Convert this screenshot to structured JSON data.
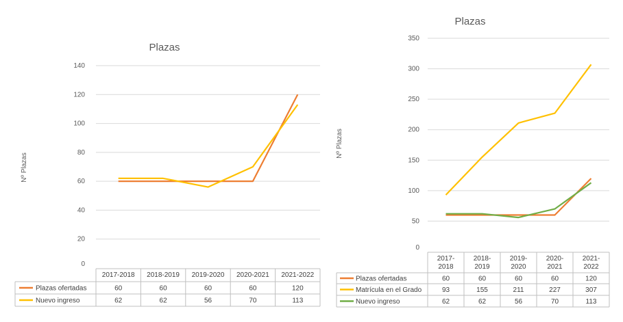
{
  "chart_data": [
    {
      "type": "line",
      "title": "Plazas",
      "ylabel": "Nº Plazas",
      "xlabel": "",
      "categories": [
        "2017-2018",
        "2018-2019",
        "2019-2020",
        "2020-2021",
        "2021-2022"
      ],
      "ylim": [
        0,
        140
      ],
      "yticks": [
        0,
        20,
        40,
        60,
        80,
        100,
        120,
        140
      ],
      "grid": true,
      "legend": "data-table",
      "series": [
        {
          "name": "Plazas ofertadas",
          "color": "#ed7d31",
          "values": [
            60,
            60,
            60,
            60,
            120
          ]
        },
        {
          "name": "Nuevo ingreso",
          "color": "#ffc000",
          "values": [
            62,
            62,
            56,
            70,
            113
          ]
        }
      ]
    },
    {
      "type": "line",
      "title": "Plazas",
      "ylabel": "Nº Plazas",
      "xlabel": "",
      "categories": [
        "2017-2018",
        "2018-2019",
        "2019-2020",
        "2020-2021",
        "2021-2022"
      ],
      "ylim": [
        0,
        350
      ],
      "yticks": [
        0,
        50,
        100,
        150,
        200,
        250,
        300,
        350
      ],
      "grid": true,
      "legend": "data-table",
      "series": [
        {
          "name": "Plazas ofertadas",
          "color": "#ed7d31",
          "values": [
            60,
            60,
            60,
            60,
            120
          ]
        },
        {
          "name": "Matrícula en el Grado",
          "color": "#ffc000",
          "values": [
            93,
            155,
            211,
            227,
            307
          ]
        },
        {
          "name": "Nuevo ingreso",
          "color": "#70ad47",
          "values": [
            62,
            62,
            56,
            70,
            113
          ]
        }
      ]
    }
  ]
}
